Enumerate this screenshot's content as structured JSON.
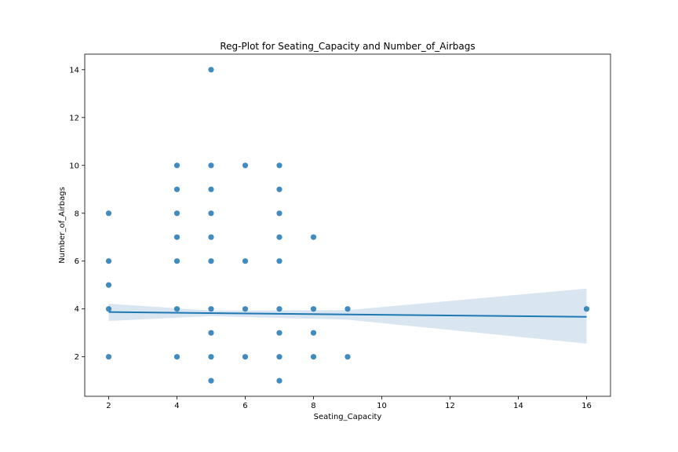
{
  "chart_data": {
    "type": "scatter",
    "title": "Reg-Plot for Seating_Capacity and Number_of_Airbags",
    "xlabel": "Seating_Capacity",
    "ylabel": "Number_of_Airbags",
    "xlim": [
      1.3,
      16.7
    ],
    "ylim": [
      0.35,
      14.65
    ],
    "xticks": [
      2,
      4,
      6,
      8,
      10,
      12,
      14,
      16
    ],
    "yticks": [
      2,
      4,
      6,
      8,
      10,
      12,
      14
    ],
    "grid": false,
    "points": [
      {
        "x": 2,
        "y": 2
      },
      {
        "x": 2,
        "y": 4
      },
      {
        "x": 2,
        "y": 5
      },
      {
        "x": 2,
        "y": 6
      },
      {
        "x": 2,
        "y": 8
      },
      {
        "x": 4,
        "y": 2
      },
      {
        "x": 4,
        "y": 4
      },
      {
        "x": 4,
        "y": 6
      },
      {
        "x": 4,
        "y": 7
      },
      {
        "x": 4,
        "y": 8
      },
      {
        "x": 4,
        "y": 9
      },
      {
        "x": 4,
        "y": 10
      },
      {
        "x": 5,
        "y": 1
      },
      {
        "x": 5,
        "y": 2
      },
      {
        "x": 5,
        "y": 3
      },
      {
        "x": 5,
        "y": 4
      },
      {
        "x": 5,
        "y": 6
      },
      {
        "x": 5,
        "y": 7
      },
      {
        "x": 5,
        "y": 8
      },
      {
        "x": 5,
        "y": 9
      },
      {
        "x": 5,
        "y": 10
      },
      {
        "x": 5,
        "y": 14
      },
      {
        "x": 6,
        "y": 2
      },
      {
        "x": 6,
        "y": 4
      },
      {
        "x": 6,
        "y": 6
      },
      {
        "x": 6,
        "y": 10
      },
      {
        "x": 7,
        "y": 1
      },
      {
        "x": 7,
        "y": 2
      },
      {
        "x": 7,
        "y": 3
      },
      {
        "x": 7,
        "y": 4
      },
      {
        "x": 7,
        "y": 6
      },
      {
        "x": 7,
        "y": 7
      },
      {
        "x": 7,
        "y": 8
      },
      {
        "x": 7,
        "y": 9
      },
      {
        "x": 7,
        "y": 10
      },
      {
        "x": 8,
        "y": 2
      },
      {
        "x": 8,
        "y": 3
      },
      {
        "x": 8,
        "y": 4
      },
      {
        "x": 8,
        "y": 7
      },
      {
        "x": 9,
        "y": 2
      },
      {
        "x": 9,
        "y": 4
      },
      {
        "x": 16,
        "y": 4
      }
    ],
    "regression": {
      "x_start": 2,
      "y_start": 3.87,
      "x_end": 16,
      "y_end": 3.67
    },
    "confidence_band": [
      {
        "x": 2,
        "lower": 3.5,
        "upper": 4.22
      },
      {
        "x": 5,
        "lower": 3.7,
        "upper": 3.93
      },
      {
        "x": 9,
        "lower": 3.55,
        "upper": 3.95
      },
      {
        "x": 16,
        "lower": 2.55,
        "upper": 4.85
      }
    ],
    "colors": {
      "point": "#1f77b4",
      "line": "#1f77b4",
      "band": "#c5d9ea"
    }
  }
}
